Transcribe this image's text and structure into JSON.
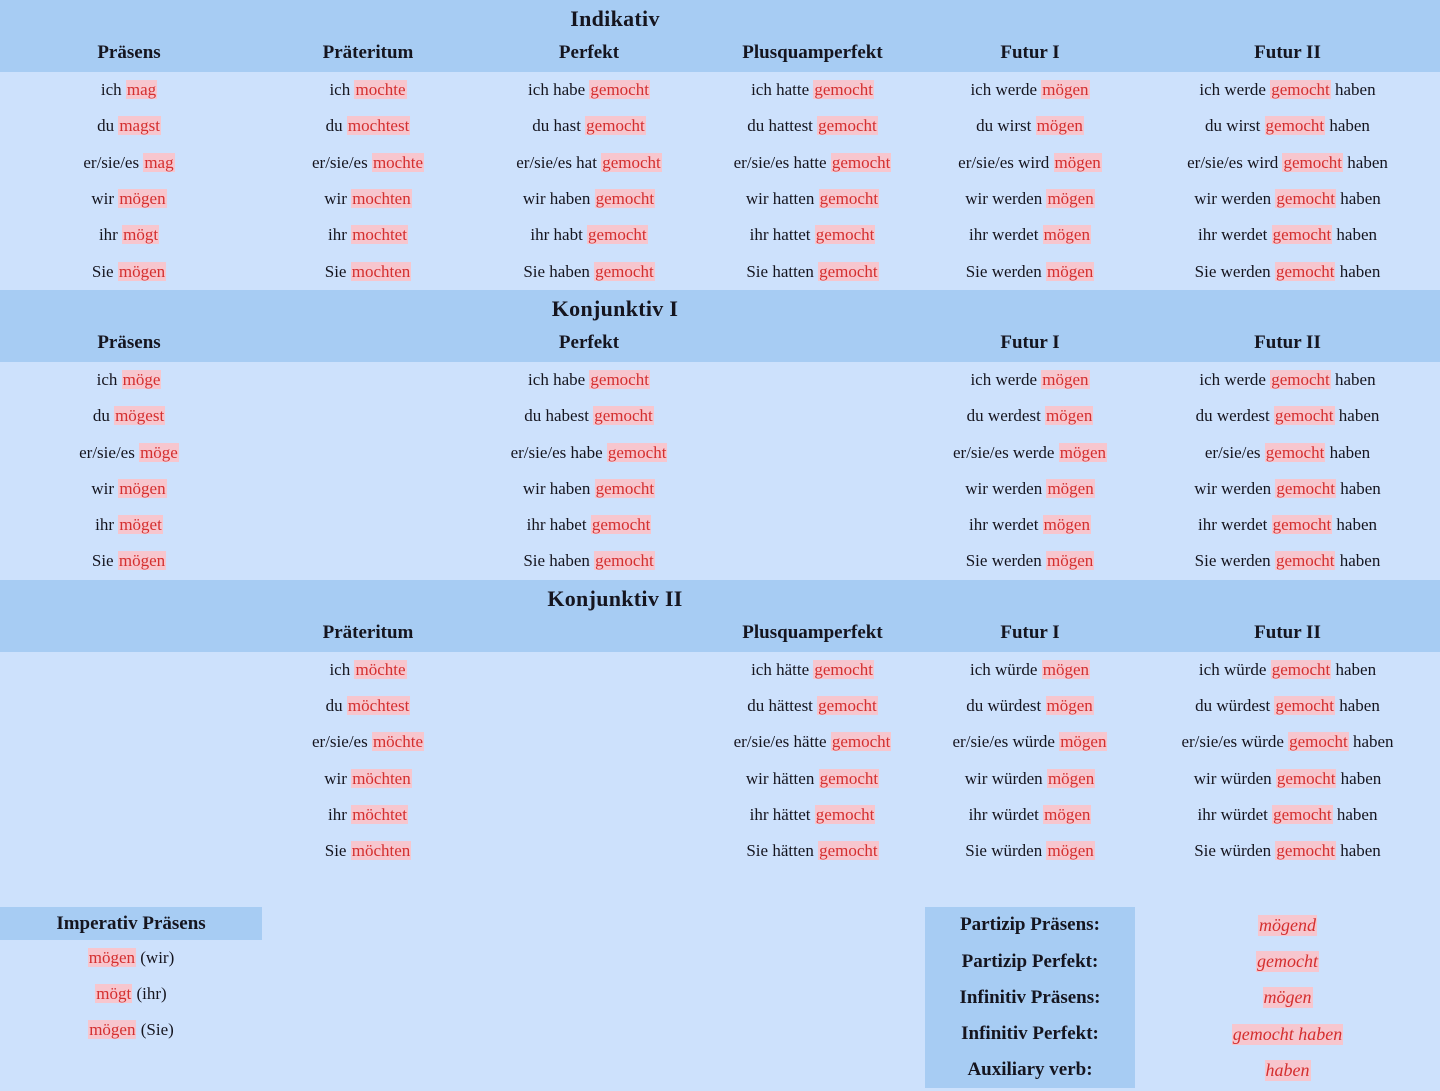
{
  "colors": {
    "page_bg": "#cde1fc",
    "band_bg": "#a7ccf3",
    "highlight_bg": "#f7c6ce",
    "highlight_text": "#d42f2f",
    "text": "#15151f"
  },
  "sections": [
    {
      "title": "Indikativ",
      "headers": [
        "Präsens",
        "Präteritum",
        "Perfekt",
        "Plusquamperfekt",
        "Futur I",
        "Futur II"
      ],
      "rows": [
        [
          "ich [mag]",
          "ich [mochte]",
          "ich habe [gemocht]",
          "ich hatte [gemocht]",
          "ich werde [mögen]",
          "ich werde [gemocht] haben"
        ],
        [
          "du [magst]",
          "du [mochtest]",
          "du hast [gemocht]",
          "du hattest [gemocht]",
          "du wirst [mögen]",
          "du wirst [gemocht] haben"
        ],
        [
          "er/sie/es [mag]",
          "er/sie/es [mochte]",
          "er/sie/es hat [gemocht]",
          "er/sie/es hatte [gemocht]",
          "er/sie/es wird [mögen]",
          "er/sie/es wird [gemocht] haben"
        ],
        [
          "wir [mögen]",
          "wir [mochten]",
          "wir haben [gemocht]",
          "wir hatten [gemocht]",
          "wir werden [mögen]",
          "wir werden [gemocht] haben"
        ],
        [
          "ihr [mögt]",
          "ihr [mochtet]",
          "ihr habt [gemocht]",
          "ihr hattet [gemocht]",
          "ihr werdet [mögen]",
          "ihr werdet [gemocht] haben"
        ],
        [
          "Sie [mögen]",
          "Sie [mochten]",
          "Sie haben [gemocht]",
          "Sie hatten [gemocht]",
          "Sie werden [mögen]",
          "Sie werden [gemocht] haben"
        ]
      ]
    },
    {
      "title": "Konjunktiv I",
      "headers": [
        "Präsens",
        "",
        "Perfekt",
        "",
        "Futur I",
        "Futur II"
      ],
      "rows": [
        [
          "ich [möge]",
          "",
          "ich habe [gemocht]",
          "",
          "ich werde [mögen]",
          "ich werde [gemocht] haben"
        ],
        [
          "du [mögest]",
          "",
          "du habest [gemocht]",
          "",
          "du werdest [mögen]",
          "du werdest [gemocht] haben"
        ],
        [
          "er/sie/es [möge]",
          "",
          "er/sie/es habe [gemocht]",
          "",
          "er/sie/es werde [mögen]",
          "er/sie/es [gemocht] haben"
        ],
        [
          "wir [mögen]",
          "",
          "wir haben [gemocht]",
          "",
          "wir werden [mögen]",
          "wir werden [gemocht] haben"
        ],
        [
          "ihr [möget]",
          "",
          "ihr habet [gemocht]",
          "",
          "ihr werdet [mögen]",
          "ihr werdet [gemocht] haben"
        ],
        [
          "Sie [mögen]",
          "",
          "Sie haben [gemocht]",
          "",
          "Sie werden [mögen]",
          "Sie werden [gemocht] haben"
        ]
      ]
    },
    {
      "title": "Konjunktiv II",
      "headers": [
        "",
        "Präteritum",
        "",
        "Plusquamperfekt",
        "Futur I",
        "Futur II"
      ],
      "rows": [
        [
          "",
          "ich [möchte]",
          "",
          "ich hätte [gemocht]",
          "ich würde [mögen]",
          "ich würde [gemocht] haben"
        ],
        [
          "",
          "du [möchtest]",
          "",
          "du hättest [gemocht]",
          "du würdest [mögen]",
          "du würdest [gemocht] haben"
        ],
        [
          "",
          "er/sie/es [möchte]",
          "",
          "er/sie/es hätte [gemocht]",
          "er/sie/es würde [mögen]",
          "er/sie/es würde [gemocht] haben"
        ],
        [
          "",
          "wir [möchten]",
          "",
          "wir hätten [gemocht]",
          "wir würden [mögen]",
          "wir würden [gemocht] haben"
        ],
        [
          "",
          "ihr [möchtet]",
          "",
          "ihr hättet [gemocht]",
          "ihr würdet [mögen]",
          "ihr würdet [gemocht] haben"
        ],
        [
          "",
          "Sie [möchten]",
          "",
          "Sie hätten [gemocht]",
          "Sie würden [mögen]",
          "Sie würden [gemocht] haben"
        ]
      ]
    }
  ],
  "imperativ": {
    "title": "Imperativ Präsens",
    "rows": [
      "[mögen] (wir)",
      "[mögt] (ihr)",
      "[mögen] (Sie)"
    ]
  },
  "summary": {
    "rows": [
      {
        "label": "Partizip Präsens:",
        "value": "[mögend]"
      },
      {
        "label": "Partizip Perfekt:",
        "value": "[gemocht]"
      },
      {
        "label": "Infinitiv Präsens:",
        "value": "[mögen]"
      },
      {
        "label": "Infinitiv Perfekt:",
        "value": "[gemocht haben]"
      },
      {
        "label": "Auxiliary verb:",
        "value": "[haben]"
      }
    ]
  }
}
